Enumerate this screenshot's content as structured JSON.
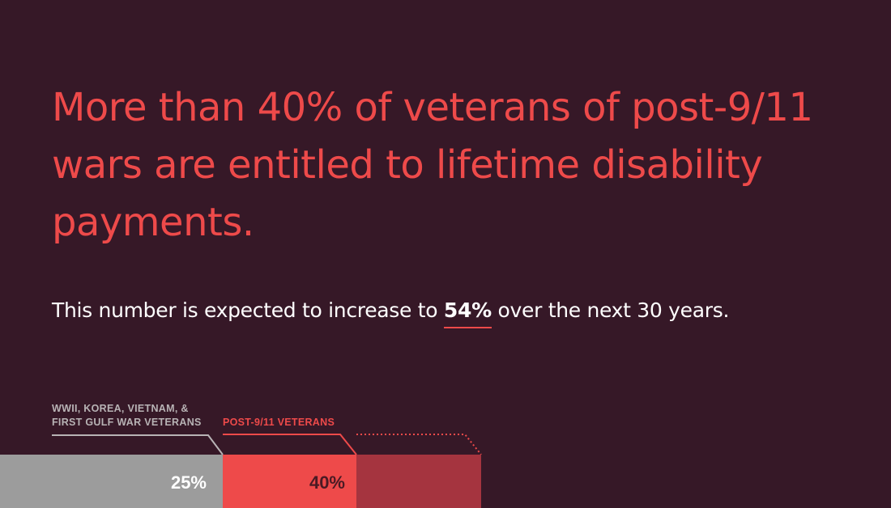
{
  "headline": "More than 40% of veterans of post-9/11 wars are entitled to lifetime disability payments.",
  "subline": {
    "before": "This number is expected to increase to ",
    "highlight": "54%",
    "after": " over the next 30 years."
  },
  "colors": {
    "background": "#361827",
    "accent": "#ee4a4a",
    "projection": "#a5343f",
    "grey_bar": "#9c9c9c",
    "grey_label": "#b8b3b5"
  },
  "chart_data": {
    "type": "bar",
    "orientation": "horizontal-segments",
    "series": [
      {
        "name": "WWII, KOREA, VIETNAM, & FIRST GULF WAR VETERANS",
        "value": 25,
        "label": "25%",
        "color": "#9c9c9c",
        "label_color": "#ffffff"
      },
      {
        "name": "POST-9/11 VETERANS",
        "value": 40,
        "label": "40%",
        "color": "#ee4a4a",
        "label_color": "#4a1a24",
        "projected_value": 54,
        "projection_color": "#a5343f"
      }
    ],
    "unit": "%"
  }
}
